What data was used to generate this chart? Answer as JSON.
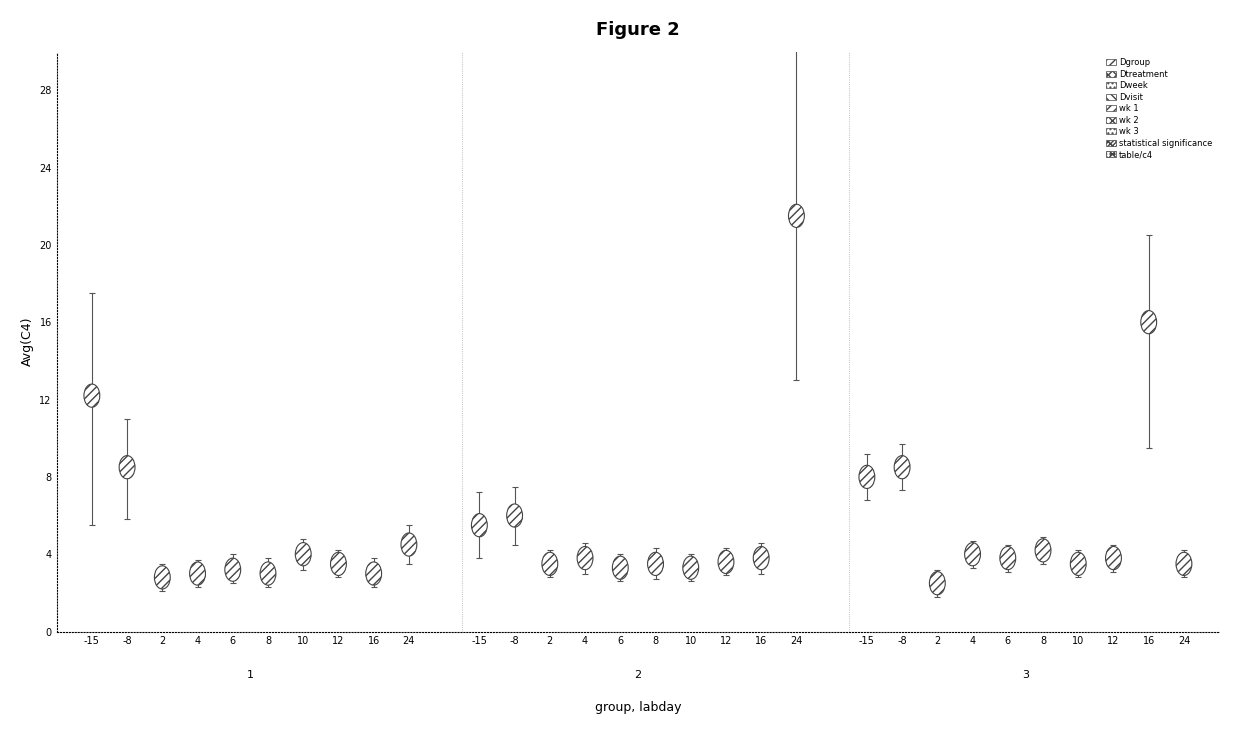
{
  "title": "Figure 2",
  "xlabel": "group, labday",
  "ylabel": "Avg(C4)",
  "ylim": [
    0,
    30
  ],
  "yticks": [
    0,
    4,
    8,
    12,
    16,
    20,
    24,
    28
  ],
  "day_order": [
    -15,
    -8,
    2,
    4,
    6,
    8,
    10,
    12,
    16,
    24
  ],
  "day_labels": [
    "-15",
    "-8",
    "2",
    "4",
    "6",
    "8",
    "10",
    "12",
    "16",
    "24"
  ],
  "group_offset": {
    "1": 0,
    "2": 11,
    "3": 22
  },
  "plot_data": {
    "1": {
      "-15": [
        12.2,
        5.5,
        17.5
      ],
      "-8": [
        8.5,
        5.8,
        11.0
      ],
      "2": [
        2.8,
        2.1,
        3.5
      ],
      "4": [
        3.0,
        2.3,
        3.7
      ],
      "6": [
        3.2,
        2.5,
        4.0
      ],
      "8": [
        3.0,
        2.3,
        3.8
      ],
      "10": [
        4.0,
        3.2,
        4.8
      ],
      "12": [
        3.5,
        2.8,
        4.2
      ],
      "16": [
        3.0,
        2.3,
        3.8
      ],
      "24": [
        4.5,
        3.5,
        5.5
      ]
    },
    "2": {
      "-15": [
        5.5,
        3.8,
        7.2
      ],
      "-8": [
        6.0,
        4.5,
        7.5
      ],
      "2": [
        3.5,
        2.8,
        4.2
      ],
      "4": [
        3.8,
        3.0,
        4.6
      ],
      "6": [
        3.3,
        2.6,
        4.0
      ],
      "8": [
        3.5,
        2.7,
        4.3
      ],
      "10": [
        3.3,
        2.6,
        4.0
      ],
      "12": [
        3.6,
        2.9,
        4.3
      ],
      "16": [
        3.8,
        3.0,
        4.6
      ],
      "24": [
        21.5,
        13.0,
        30.5
      ]
    },
    "3": {
      "-15": [
        8.0,
        6.8,
        9.2
      ],
      "-8": [
        8.5,
        7.3,
        9.7
      ],
      "2": [
        2.5,
        1.8,
        3.2
      ],
      "4": [
        4.0,
        3.3,
        4.7
      ],
      "6": [
        3.8,
        3.1,
        4.5
      ],
      "8": [
        4.2,
        3.5,
        4.9
      ],
      "10": [
        3.5,
        2.8,
        4.2
      ],
      "12": [
        3.8,
        3.1,
        4.5
      ],
      "16": [
        16.0,
        9.5,
        20.5
      ],
      "24": [
        3.5,
        2.8,
        4.2
      ]
    }
  },
  "legend_labels": [
    "Dgroup",
    "Dtreatment",
    "Dweek",
    "Dvisit",
    "wk 1",
    "wk 2",
    "wk 3",
    "statistical significance",
    "table/c4"
  ],
  "marker_size": 10,
  "elinewidth": 0.8,
  "capsize": 2,
  "marker_color_fill": "white",
  "marker_edge_color": "#333333",
  "errorbar_color": "#555555"
}
